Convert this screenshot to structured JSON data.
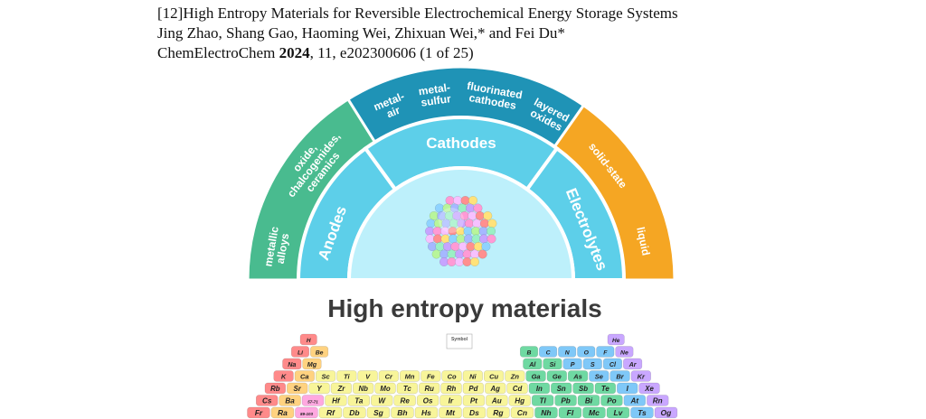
{
  "citation": {
    "ref_number": "[12]",
    "title": "High Entropy Materials for Reversible Electrochemical Energy Storage Systems",
    "authors": "Jing Zhao, Shang Gao, Haoming Wei, Zhixuan Wei,* and Fei Du*",
    "journal": "ChemElectroChem",
    "year": "2024",
    "volume_tail": ", 11, e202300606 (1 of 25)"
  },
  "figure": {
    "center_label": "Cathodes",
    "left_label": "Anodes",
    "right_label": "Electrolytes",
    "cathode_segments": [
      {
        "lines": [
          "metal-",
          "air"
        ]
      },
      {
        "lines": [
          "metal-",
          "sulfur"
        ]
      },
      {
        "lines": [
          "fluorinated",
          "cathodes"
        ]
      },
      {
        "lines": [
          "layered",
          "oxides"
        ]
      }
    ],
    "anode_segments": [
      {
        "lines": [
          "metallic",
          "alloys"
        ]
      },
      {
        "lines": [
          "oxide,",
          "chalcogenides,",
          "ceramics"
        ]
      }
    ],
    "electrolyte_segments": [
      {
        "lines": [
          "solid-state"
        ]
      },
      {
        "lines": [
          "liquid"
        ]
      }
    ],
    "main_title": "High entropy materials",
    "legend_title": "Symbol",
    "colors": {
      "outer_cathode": "#1f93b6",
      "outer_anode": "#49bb8f",
      "outer_electrolyte": "#f5a623",
      "middle_ring": "#5dcfe9",
      "inner_disc": "#bdf0fb"
    },
    "periodic_table": {
      "rows": [
        [
          [
            "H",
            "#ff8a8a"
          ],
          null,
          null,
          null,
          null,
          null,
          null,
          null,
          null,
          null,
          null,
          null,
          null,
          null,
          null,
          null,
          null,
          [
            "He",
            "#c9a7ff"
          ]
        ],
        [
          [
            "Li",
            "#ff8a8a"
          ],
          [
            "Be",
            "#ffd280"
          ],
          null,
          null,
          null,
          null,
          null,
          null,
          null,
          null,
          null,
          null,
          [
            "B",
            "#6fd9a2"
          ],
          [
            "C",
            "#7fc8f8"
          ],
          [
            "N",
            "#7fc8f8"
          ],
          [
            "O",
            "#7fc8f8"
          ],
          [
            "F",
            "#7fc8f8"
          ],
          [
            "Ne",
            "#c9a7ff"
          ]
        ],
        [
          [
            "Na",
            "#ff8a8a"
          ],
          [
            "Mg",
            "#ffd280"
          ],
          null,
          null,
          null,
          null,
          null,
          null,
          null,
          null,
          null,
          null,
          [
            "Al",
            "#6fd9a2"
          ],
          [
            "Si",
            "#6fd9a2"
          ],
          [
            "P",
            "#7fc8f8"
          ],
          [
            "S",
            "#7fc8f8"
          ],
          [
            "Cl",
            "#7fc8f8"
          ],
          [
            "Ar",
            "#c9a7ff"
          ]
        ],
        [
          [
            "K",
            "#ff8a8a"
          ],
          [
            "Ca",
            "#ffd280"
          ],
          [
            "Sc",
            "#f8f59a"
          ],
          [
            "Ti",
            "#f8f59a"
          ],
          [
            "V",
            "#f8f59a"
          ],
          [
            "Cr",
            "#f8f59a"
          ],
          [
            "Mn",
            "#f8f59a"
          ],
          [
            "Fe",
            "#f8f59a"
          ],
          [
            "Co",
            "#f8f59a"
          ],
          [
            "Ni",
            "#f8f59a"
          ],
          [
            "Cu",
            "#f8f59a"
          ],
          [
            "Zn",
            "#f8f59a"
          ],
          [
            "Ga",
            "#6fd9a2"
          ],
          [
            "Ge",
            "#6fd9a2"
          ],
          [
            "As",
            "#6fd9a2"
          ],
          [
            "Se",
            "#7fc8f8"
          ],
          [
            "Br",
            "#7fc8f8"
          ],
          [
            "Kr",
            "#c9a7ff"
          ]
        ],
        [
          [
            "Rb",
            "#ff8a8a"
          ],
          [
            "Sr",
            "#ffd280"
          ],
          [
            "Y",
            "#f8f59a"
          ],
          [
            "Zr",
            "#f8f59a"
          ],
          [
            "Nb",
            "#f8f59a"
          ],
          [
            "Mo",
            "#f8f59a"
          ],
          [
            "Tc",
            "#f8f59a"
          ],
          [
            "Ru",
            "#f8f59a"
          ],
          [
            "Rh",
            "#f8f59a"
          ],
          [
            "Pd",
            "#f8f59a"
          ],
          [
            "Ag",
            "#f8f59a"
          ],
          [
            "Cd",
            "#f8f59a"
          ],
          [
            "In",
            "#6fd9a2"
          ],
          [
            "Sn",
            "#6fd9a2"
          ],
          [
            "Sb",
            "#6fd9a2"
          ],
          [
            "Te",
            "#6fd9a2"
          ],
          [
            "I",
            "#7fc8f8"
          ],
          [
            "Xe",
            "#c9a7ff"
          ]
        ],
        [
          [
            "Cs",
            "#ff8a8a"
          ],
          [
            "Ba",
            "#ffd280"
          ],
          [
            "57-71",
            "#ffa8e0"
          ],
          [
            "Hf",
            "#f8f59a"
          ],
          [
            "Ta",
            "#f8f59a"
          ],
          [
            "W",
            "#f8f59a"
          ],
          [
            "Re",
            "#f8f59a"
          ],
          [
            "Os",
            "#f8f59a"
          ],
          [
            "Ir",
            "#f8f59a"
          ],
          [
            "Pt",
            "#f8f59a"
          ],
          [
            "Au",
            "#f8f59a"
          ],
          [
            "Hg",
            "#f8f59a"
          ],
          [
            "Tl",
            "#6fd9a2"
          ],
          [
            "Pb",
            "#6fd9a2"
          ],
          [
            "Bi",
            "#6fd9a2"
          ],
          [
            "Po",
            "#6fd9a2"
          ],
          [
            "At",
            "#7fc8f8"
          ],
          [
            "Rn",
            "#c9a7ff"
          ]
        ],
        [
          [
            "Fr",
            "#ff8a8a"
          ],
          [
            "Ra",
            "#ffd280"
          ],
          [
            "89-103",
            "#ffa8e0"
          ],
          [
            "Rf",
            "#f8f59a"
          ],
          [
            "Db",
            "#f8f59a"
          ],
          [
            "Sg",
            "#f8f59a"
          ],
          [
            "Bh",
            "#f8f59a"
          ],
          [
            "Hs",
            "#f8f59a"
          ],
          [
            "Mt",
            "#f8f59a"
          ],
          [
            "Ds",
            "#f8f59a"
          ],
          [
            "Rg",
            "#f8f59a"
          ],
          [
            "Cn",
            "#f8f59a"
          ],
          [
            "Nh",
            "#6fd9a2"
          ],
          [
            "Fl",
            "#6fd9a2"
          ],
          [
            "Mc",
            "#6fd9a2"
          ],
          [
            "Lv",
            "#6fd9a2"
          ],
          [
            "Ts",
            "#7fc8f8"
          ],
          [
            "Og",
            "#c9a7ff"
          ]
        ]
      ]
    },
    "sphere_colors": [
      "#ff9ad5",
      "#8fd3ff",
      "#c6a4ff",
      "#ffe27a",
      "#9af0c4",
      "#ff8f8f",
      "#a5b8ff",
      "#f6c1ff",
      "#b8f59a"
    ]
  }
}
